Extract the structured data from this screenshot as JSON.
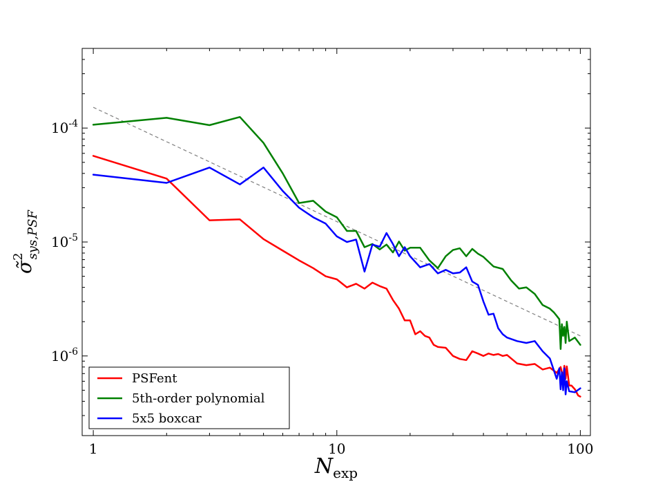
{
  "chart_data": {
    "type": "line",
    "xscale": "log",
    "yscale": "log",
    "xlim": [
      0.9,
      110
    ],
    "ylim": [
      2e-07,
      0.0005
    ],
    "grid": false,
    "xlabel": {
      "main": "N",
      "sub": "exp"
    },
    "ylabel": {
      "main": "σ̃",
      "sup": "2",
      "sub": "sys,PSF"
    },
    "x_ticks": [
      {
        "value": 1,
        "label": "1"
      },
      {
        "value": 10,
        "label": "10"
      },
      {
        "value": 100,
        "label": "100"
      }
    ],
    "y_ticks": [
      {
        "value": 1e-06,
        "base": "10",
        "exp": "-6"
      },
      {
        "value": 1e-05,
        "base": "10",
        "exp": "-5"
      },
      {
        "value": 0.0001,
        "base": "10",
        "exp": "-4"
      }
    ],
    "legend_position": "lower-left",
    "reference_line": {
      "style": "dashed",
      "color": "#808080",
      "x": [
        1,
        100
      ],
      "y": [
        0.000152,
        1.5e-06
      ]
    },
    "series": [
      {
        "name": "PSFent",
        "color": "#ff0000",
        "x": [
          1,
          2,
          3,
          4,
          5,
          6,
          7,
          8,
          9,
          10,
          11,
          12,
          13,
          14,
          15,
          16,
          17,
          18,
          19,
          20,
          21,
          22,
          23,
          24,
          25,
          26,
          28,
          30,
          32,
          34,
          36,
          38,
          40,
          42,
          44,
          46,
          48,
          50,
          55,
          60,
          65,
          70,
          75,
          80,
          83,
          85,
          86,
          87,
          88,
          90,
          92,
          95,
          98,
          100
        ],
        "y": [
          5.7e-05,
          3.6e-05,
          1.55e-05,
          1.58e-05,
          1.06e-05,
          8.4e-06,
          6.9e-06,
          5.9e-06,
          5e-06,
          4.7e-06,
          4e-06,
          4.3e-06,
          3.9e-06,
          4.4e-06,
          4.1e-06,
          3.9e-06,
          3.1e-06,
          2.6e-06,
          2.05e-06,
          2.05e-06,
          1.55e-06,
          1.65e-06,
          1.5e-06,
          1.45e-06,
          1.25e-06,
          1.2e-06,
          1.18e-06,
          1e-06,
          9.4e-07,
          9.2e-07,
          1.1e-06,
          1.05e-06,
          1e-06,
          1.05e-06,
          1.02e-06,
          1.04e-06,
          1e-06,
          1.02e-06,
          8.6e-07,
          8.3e-07,
          8.5e-07,
          7.6e-07,
          7.9e-07,
          7.1e-07,
          8e-07,
          6.4e-07,
          8.2e-07,
          6.3e-07,
          8.1e-07,
          5.5e-07,
          5.5e-07,
          5.1e-07,
          4.5e-07,
          4.4e-07
        ]
      },
      {
        "name": "5th-order polynomial",
        "color": "#008000",
        "x": [
          1,
          2,
          3,
          4,
          5,
          6,
          7,
          8,
          9,
          10,
          11,
          12,
          13,
          14,
          15,
          16,
          17,
          18,
          19,
          20,
          22,
          24,
          26,
          28,
          30,
          32,
          34,
          36,
          38,
          40,
          44,
          48,
          52,
          56,
          60,
          65,
          70,
          75,
          78,
          80,
          82,
          83,
          84,
          85,
          86,
          87,
          88,
          90,
          95,
          100
        ],
        "y": [
          0.000107,
          0.000123,
          0.000106,
          0.000125,
          7.4e-05,
          4e-05,
          2.2e-05,
          2.3e-05,
          1.85e-05,
          1.65e-05,
          1.25e-05,
          1.25e-05,
          9e-06,
          9.6e-06,
          8.6e-06,
          9.5e-06,
          8.1e-06,
          1.01e-05,
          8.4e-06,
          8.9e-06,
          8.9e-06,
          6.9e-06,
          5.9e-06,
          7.5e-06,
          8.5e-06,
          8.8e-06,
          7.5e-06,
          8.7e-06,
          7.9e-06,
          7.4e-06,
          6.1e-06,
          5.8e-06,
          4.6e-06,
          3.9e-06,
          4e-06,
          3.5e-06,
          2.8e-06,
          2.6e-06,
          2.4e-06,
          2.25e-06,
          2.1e-06,
          1.15e-06,
          1.9e-06,
          1.5e-06,
          1.8e-06,
          1.3e-06,
          2e-06,
          1.35e-06,
          1.45e-06,
          1.25e-06
        ]
      },
      {
        "name": "5x5 boxcar",
        "color": "#0000ff",
        "x": [
          1,
          2,
          3,
          4,
          5,
          6,
          7,
          8,
          9,
          10,
          11,
          12,
          13,
          14,
          15,
          16,
          17,
          18,
          19,
          20,
          22,
          24,
          26,
          28,
          30,
          32,
          34,
          36,
          38,
          40,
          42,
          44,
          46,
          48,
          50,
          55,
          60,
          65,
          70,
          75,
          80,
          82,
          83,
          84,
          85,
          86,
          87,
          88,
          90,
          95,
          100
        ],
        "y": [
          3.9e-05,
          3.3e-05,
          4.5e-05,
          3.2e-05,
          4.5e-05,
          2.8e-05,
          2e-05,
          1.65e-05,
          1.45e-05,
          1.12e-05,
          1e-05,
          1.05e-05,
          5.5e-06,
          9.5e-06,
          9.1e-06,
          1.2e-05,
          9.6e-06,
          7.5e-06,
          9e-06,
          7.5e-06,
          6e-06,
          6.4e-06,
          5.3e-06,
          5.7e-06,
          5.3e-06,
          5.4e-06,
          6e-06,
          4.5e-06,
          4.2e-06,
          3e-06,
          2.3e-06,
          2.35e-06,
          1.75e-06,
          1.55e-06,
          1.45e-06,
          1.35e-06,
          1.3e-06,
          1.35e-06,
          1.1e-06,
          9.5e-07,
          6.3e-07,
          7.8e-07,
          5.1e-07,
          7.2e-07,
          5e-07,
          7.8e-07,
          4.6e-07,
          6e-07,
          4.9e-07,
          4.8e-07,
          5.2e-07
        ]
      }
    ]
  }
}
